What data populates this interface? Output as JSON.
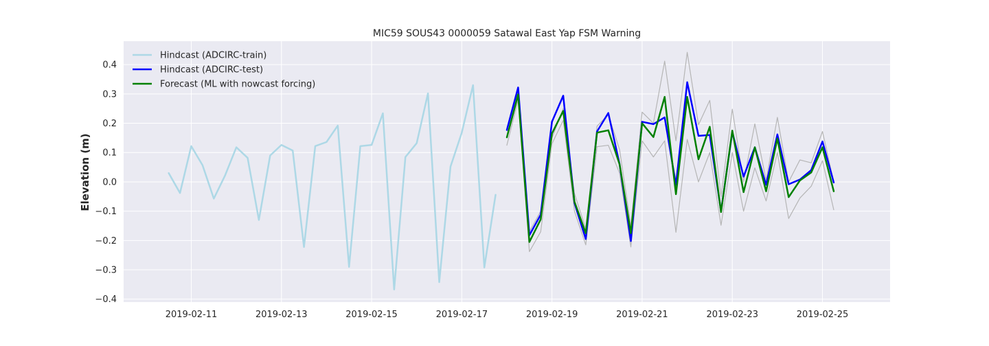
{
  "chart_data": {
    "type": "line",
    "title": "MIC59 SOUS43 0000059 Satawal East Yap FSM Warning",
    "xlabel": "",
    "ylabel": "Elevation (m)",
    "x_type": "date",
    "xlim": [
      "2019-02-09T12:00",
      "2019-02-26T12:00"
    ],
    "ylim": [
      -0.41,
      0.48
    ],
    "grid": true,
    "legend_position": "top-left",
    "x_ticks": [
      "2019-02-11",
      "2019-02-13",
      "2019-02-15",
      "2019-02-17",
      "2019-02-19",
      "2019-02-21",
      "2019-02-23",
      "2019-02-25"
    ],
    "y_ticks": [
      -0.4,
      -0.3,
      -0.2,
      -0.1,
      0.0,
      0.1,
      0.2,
      0.3,
      0.4
    ],
    "y_tick_labels": [
      "−0.4",
      "−0.3",
      "−0.2",
      "−0.1",
      "0.0",
      "0.1",
      "0.2",
      "0.3",
      "0.4"
    ],
    "colors": {
      "background": "#eaeaf2",
      "grid": "#ffffff",
      "train": "#add8e6",
      "test": "#0000ff",
      "forecast": "#008000",
      "envelope": "#b5b5b5"
    },
    "series": [
      {
        "name": "Hindcast (ADCIRC-train)",
        "color": "#add8e6",
        "x": [
          "2019-02-10T12:00",
          "2019-02-10T18:00",
          "2019-02-11T00:00",
          "2019-02-11T06:00",
          "2019-02-11T12:00",
          "2019-02-11T18:00",
          "2019-02-12T00:00",
          "2019-02-12T06:00",
          "2019-02-12T12:00",
          "2019-02-12T18:00",
          "2019-02-13T00:00",
          "2019-02-13T06:00",
          "2019-02-13T12:00",
          "2019-02-13T18:00",
          "2019-02-14T00:00",
          "2019-02-14T06:00",
          "2019-02-14T12:00",
          "2019-02-14T18:00",
          "2019-02-15T00:00",
          "2019-02-15T06:00",
          "2019-02-15T12:00",
          "2019-02-15T18:00",
          "2019-02-16T00:00",
          "2019-02-16T06:00",
          "2019-02-16T12:00",
          "2019-02-16T18:00",
          "2019-02-17T00:00",
          "2019-02-17T06:00",
          "2019-02-17T12:00",
          "2019-02-17T18:00"
        ],
        "y": [
          0.03,
          -0.038,
          0.122,
          0.057,
          -0.057,
          0.022,
          0.118,
          0.082,
          -0.13,
          0.09,
          0.126,
          0.107,
          -0.222,
          0.122,
          0.136,
          0.192,
          -0.29,
          0.122,
          0.126,
          0.234,
          -0.367,
          0.085,
          0.132,
          0.302,
          -0.342,
          0.052,
          0.168,
          0.33,
          -0.292,
          -0.044
        ]
      },
      {
        "name": "Hindcast (ADCIRC-test)",
        "color": "#0000ff",
        "x": [
          "2019-02-18T00:00",
          "2019-02-18T06:00",
          "2019-02-18T12:00",
          "2019-02-18T18:00",
          "2019-02-19T00:00",
          "2019-02-19T06:00",
          "2019-02-19T12:00",
          "2019-02-19T18:00",
          "2019-02-20T00:00",
          "2019-02-20T06:00",
          "2019-02-20T12:00",
          "2019-02-20T18:00",
          "2019-02-21T00:00",
          "2019-02-21T06:00",
          "2019-02-21T12:00",
          "2019-02-21T18:00",
          "2019-02-22T00:00",
          "2019-02-22T06:00",
          "2019-02-22T12:00",
          "2019-02-22T18:00",
          "2019-02-23T00:00",
          "2019-02-23T06:00",
          "2019-02-23T12:00",
          "2019-02-23T18:00",
          "2019-02-24T00:00",
          "2019-02-24T06:00",
          "2019-02-24T12:00",
          "2019-02-24T18:00",
          "2019-02-25T00:00",
          "2019-02-25T06:00"
        ],
        "y": [
          0.177,
          0.322,
          -0.182,
          -0.112,
          0.205,
          0.294,
          -0.072,
          -0.195,
          0.172,
          0.235,
          0.06,
          -0.202,
          0.205,
          0.197,
          0.22,
          -0.01,
          0.34,
          0.157,
          0.16,
          -0.1,
          0.17,
          0.018,
          0.118,
          -0.01,
          0.162,
          -0.008,
          0.008,
          0.04,
          0.138,
          -0.002
        ]
      },
      {
        "name": "Forecast (ML with nowcast forcing)",
        "color": "#008000",
        "x": [
          "2019-02-18T00:00",
          "2019-02-18T06:00",
          "2019-02-18T12:00",
          "2019-02-18T18:00",
          "2019-02-19T00:00",
          "2019-02-19T06:00",
          "2019-02-19T12:00",
          "2019-02-19T18:00",
          "2019-02-20T00:00",
          "2019-02-20T06:00",
          "2019-02-20T12:00",
          "2019-02-20T18:00",
          "2019-02-21T00:00",
          "2019-02-21T06:00",
          "2019-02-21T12:00",
          "2019-02-21T18:00",
          "2019-02-22T00:00",
          "2019-02-22T06:00",
          "2019-02-22T12:00",
          "2019-02-22T18:00",
          "2019-02-23T00:00",
          "2019-02-23T06:00",
          "2019-02-23T12:00",
          "2019-02-23T18:00",
          "2019-02-24T00:00",
          "2019-02-24T06:00",
          "2019-02-24T12:00",
          "2019-02-24T18:00",
          "2019-02-25T00:00",
          "2019-02-25T06:00"
        ],
        "y": [
          0.152,
          0.298,
          -0.205,
          -0.128,
          0.165,
          0.242,
          -0.068,
          -0.175,
          0.168,
          0.176,
          0.06,
          -0.175,
          0.2,
          0.153,
          0.29,
          -0.042,
          0.29,
          0.077,
          0.188,
          -0.103,
          0.175,
          -0.035,
          0.118,
          -0.032,
          0.148,
          -0.052,
          0.005,
          0.032,
          0.118,
          -0.032
        ]
      },
      {
        "color": "#b5b5b5",
        "x": [
          "2019-02-18T00:00",
          "2019-02-18T06:00",
          "2019-02-18T12:00",
          "2019-02-18T18:00",
          "2019-02-19T00:00",
          "2019-02-19T06:00",
          "2019-02-19T12:00",
          "2019-02-19T18:00",
          "2019-02-20T00:00",
          "2019-02-20T06:00",
          "2019-02-20T12:00",
          "2019-02-20T18:00",
          "2019-02-21T00:00",
          "2019-02-21T06:00",
          "2019-02-21T12:00",
          "2019-02-21T18:00",
          "2019-02-22T00:00",
          "2019-02-22T06:00",
          "2019-02-22T12:00",
          "2019-02-22T18:00",
          "2019-02-23T00:00",
          "2019-02-23T06:00",
          "2019-02-23T12:00",
          "2019-02-23T18:00",
          "2019-02-24T00:00",
          "2019-02-24T06:00",
          "2019-02-24T12:00",
          "2019-02-24T18:00",
          "2019-02-25T00:00",
          "2019-02-25T06:00"
        ],
        "y": [
          0.178,
          0.31,
          -0.17,
          -0.1,
          0.15,
          0.25,
          -0.04,
          -0.16,
          0.19,
          0.23,
          0.11,
          -0.15,
          0.238,
          0.2,
          0.412,
          0.14,
          0.442,
          0.195,
          0.278,
          -0.05,
          0.248,
          0.0,
          0.198,
          0.005,
          0.22,
          0.0,
          0.075,
          0.065,
          0.172,
          0.0
        ]
      },
      {
        "color": "#b5b5b5",
        "x": [
          "2019-02-18T00:00",
          "2019-02-18T06:00",
          "2019-02-18T12:00",
          "2019-02-18T18:00",
          "2019-02-19T00:00",
          "2019-02-19T06:00",
          "2019-02-19T12:00",
          "2019-02-19T18:00",
          "2019-02-20T00:00",
          "2019-02-20T06:00",
          "2019-02-20T12:00",
          "2019-02-20T18:00",
          "2019-02-21T00:00",
          "2019-02-21T06:00",
          "2019-02-21T12:00",
          "2019-02-21T18:00",
          "2019-02-22T00:00",
          "2019-02-22T06:00",
          "2019-02-22T12:00",
          "2019-02-22T18:00",
          "2019-02-23T00:00",
          "2019-02-23T06:00",
          "2019-02-23T12:00",
          "2019-02-23T18:00",
          "2019-02-24T00:00",
          "2019-02-24T06:00",
          "2019-02-24T12:00",
          "2019-02-24T18:00",
          "2019-02-25T00:00",
          "2019-02-25T06:00"
        ],
        "y": [
          0.125,
          0.28,
          -0.238,
          -0.17,
          0.13,
          0.21,
          -0.1,
          -0.215,
          0.12,
          0.125,
          0.03,
          -0.222,
          0.14,
          0.085,
          0.14,
          -0.172,
          0.145,
          0.0,
          0.1,
          -0.148,
          0.1,
          -0.1,
          0.048,
          -0.065,
          0.1,
          -0.125,
          -0.055,
          -0.015,
          0.072,
          -0.095
        ]
      }
    ]
  }
}
